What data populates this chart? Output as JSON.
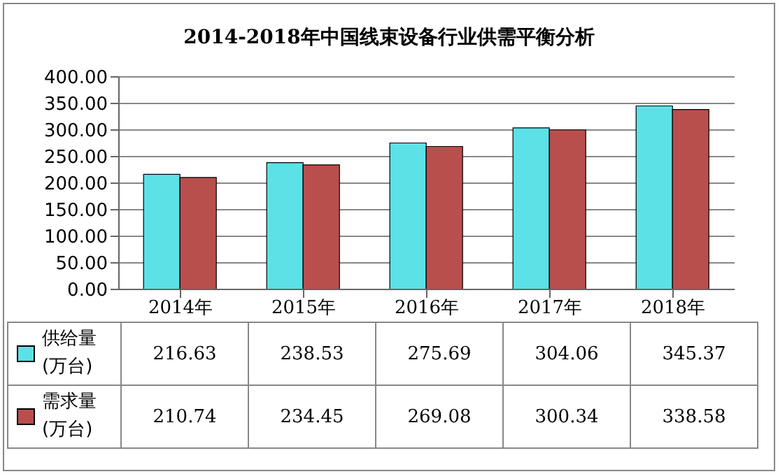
{
  "chart_data": {
    "type": "bar",
    "title": "2014-2018年中国线束设备行业供需平衡分析",
    "categories": [
      "2014年",
      "2015年",
      "2016年",
      "2017年",
      "2018年"
    ],
    "series": [
      {
        "name": "供给量 (万台)",
        "color": "#5ce1e6",
        "values": [
          216.63,
          238.53,
          275.69,
          304.06,
          345.37
        ]
      },
      {
        "name": "需求量 (万台)",
        "color": "#b94f4c",
        "values": [
          210.74,
          234.45,
          269.08,
          300.34,
          338.58
        ]
      }
    ],
    "ylim": [
      0,
      400
    ],
    "yticks": [
      {
        "value": 0,
        "label": "0.00"
      },
      {
        "value": 50,
        "label": "50.00"
      },
      {
        "value": 100,
        "label": "100.00"
      },
      {
        "value": 150,
        "label": "150.00"
      },
      {
        "value": 200,
        "label": "200.00"
      },
      {
        "value": 250,
        "label": "250.00"
      },
      {
        "value": 300,
        "label": "300.00"
      },
      {
        "value": 350,
        "label": "350.00"
      },
      {
        "value": 400,
        "label": "400.00"
      }
    ],
    "grid": "y",
    "legend": "bottom left",
    "data_labels": true
  }
}
